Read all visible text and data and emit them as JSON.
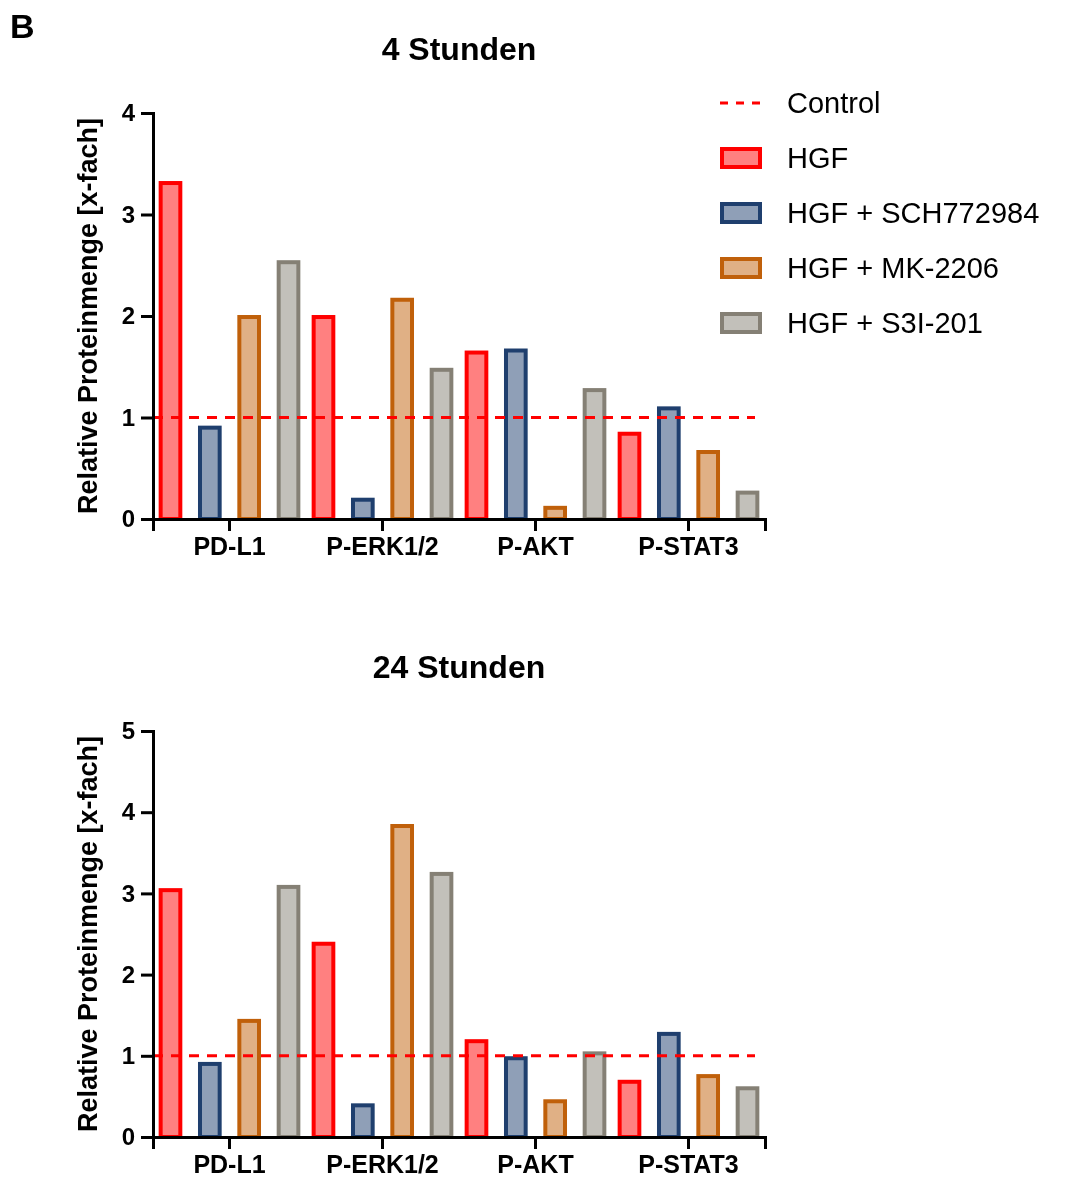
{
  "chart_data": [
    {
      "type": "bar",
      "title": "4 Stunden",
      "ylabel": "Relative Proteinmenge [x-fach]",
      "annotations": [
        "B"
      ],
      "categories": [
        "PD-L1",
        "P-ERK1/2",
        "P-AKT",
        "P-STAT3"
      ],
      "ylim": [
        0,
        4
      ],
      "yticks": [
        0,
        1,
        2,
        3,
        4
      ],
      "grid": false,
      "legend": "right",
      "ref_lines": [
        {
          "axis": "y",
          "value": 1,
          "label": "Control",
          "color": "#ff0000",
          "line_style": "dashed"
        }
      ],
      "series": [
        {
          "name": "HGF",
          "color": "#ff0000",
          "values": [
            3.31,
            1.99,
            1.64,
            0.84
          ]
        },
        {
          "name": "HGF + SCH772984",
          "color": "#1f3f6e",
          "values": [
            0.9,
            0.19,
            1.66,
            1.09
          ]
        },
        {
          "name": "HGF + MK-2206",
          "color": "#c0600a",
          "values": [
            1.99,
            2.16,
            0.11,
            0.66
          ]
        },
        {
          "name": "HGF + S3I-201",
          "color": "#858075",
          "values": [
            2.53,
            1.47,
            1.27,
            0.26
          ]
        }
      ]
    },
    {
      "type": "bar",
      "title": "24 Stunden",
      "ylabel": "Relative Proteinmenge [x-fach]",
      "categories": [
        "PD-L1",
        "P-ERK1/2",
        "P-AKT",
        "P-STAT3"
      ],
      "ylim": [
        0,
        5
      ],
      "yticks": [
        0,
        1,
        2,
        3,
        4,
        5
      ],
      "grid": false,
      "legend": false,
      "ref_lines": [
        {
          "axis": "y",
          "value": 1,
          "color": "#ff0000",
          "line_style": "dashed"
        }
      ],
      "series": [
        {
          "color": "#ff0000",
          "values": [
            3.04,
            2.38,
            1.18,
            0.68
          ]
        },
        {
          "color": "#1f3f6e",
          "values": [
            0.9,
            0.39,
            0.97,
            1.27
          ]
        },
        {
          "color": "#c0600a",
          "values": [
            1.43,
            3.83,
            0.44,
            0.75
          ]
        },
        {
          "color": "#858075",
          "values": [
            3.08,
            3.24,
            1.03,
            0.6
          ]
        }
      ]
    }
  ]
}
